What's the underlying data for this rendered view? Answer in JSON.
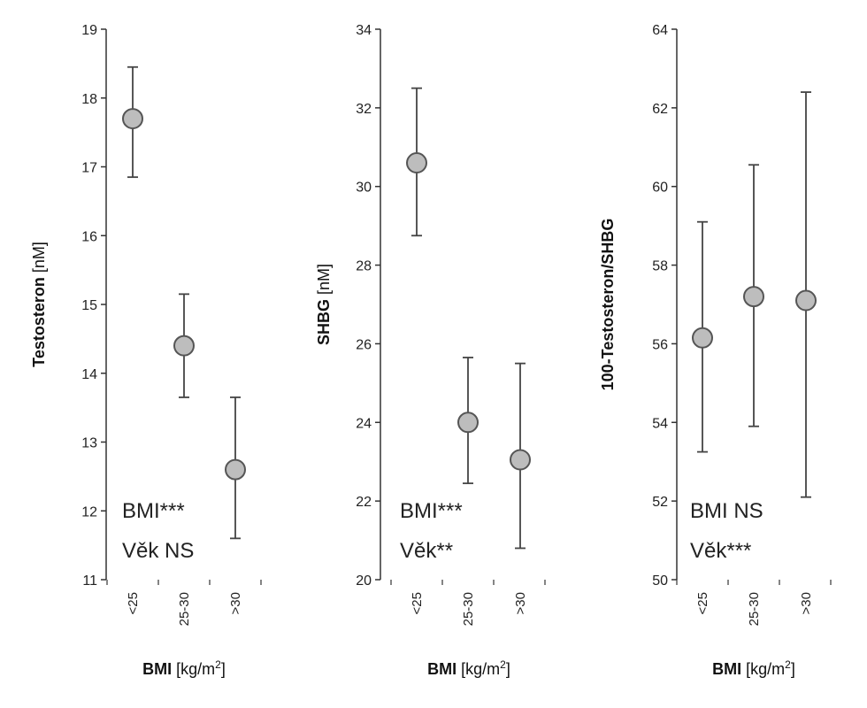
{
  "chart_data": [
    {
      "type": "scatter",
      "ylabel": {
        "bold": "Testosteron",
        "unit": " [nM]"
      },
      "xlabel": {
        "bold": "BMI",
        "unit": " [kg/m",
        "sup": "2",
        "close": "]"
      },
      "ylim": [
        11,
        19
      ],
      "yticks": [
        "11",
        "12",
        "13",
        "14",
        "15",
        "16",
        "17",
        "18",
        "19"
      ],
      "categories": [
        "<25",
        "25-30",
        ">30"
      ],
      "values": [
        17.7,
        14.4,
        12.6
      ],
      "error_low": [
        16.85,
        13.65,
        11.6
      ],
      "error_high": [
        18.45,
        15.15,
        13.65
      ],
      "annotations": [
        {
          "label": "BMI",
          "sig": "***"
        },
        {
          "label": "Věk",
          "sig": " NS"
        }
      ]
    },
    {
      "type": "scatter",
      "ylabel": {
        "bold": "SHBG",
        "unit": " [nM]"
      },
      "xlabel": {
        "bold": "BMI",
        "unit": " [kg/m",
        "sup": "2",
        "close": "]"
      },
      "ylim": [
        20,
        34
      ],
      "yticks": [
        "20",
        "22",
        "24",
        "26",
        "28",
        "30",
        "32",
        "34"
      ],
      "categories": [
        "<25",
        "25-30",
        ">30"
      ],
      "values": [
        30.6,
        24.0,
        23.05
      ],
      "error_low": [
        28.75,
        22.45,
        20.8
      ],
      "error_high": [
        32.5,
        25.65,
        25.5
      ],
      "annotations": [
        {
          "label": "BMI",
          "sig": "***"
        },
        {
          "label": "Věk",
          "sig": "**"
        }
      ]
    },
    {
      "type": "scatter",
      "ylabel": {
        "bold": "100-Testosteron/SHBG",
        "unit": ""
      },
      "xlabel": {
        "bold": "BMI",
        "unit": " [kg/m",
        "sup": "2",
        "close": "]"
      },
      "ylim": [
        50,
        64
      ],
      "yticks": [
        "50",
        "52",
        "54",
        "56",
        "58",
        "60",
        "62",
        "64"
      ],
      "categories": [
        "<25",
        "25-30",
        ">30"
      ],
      "values": [
        56.15,
        57.2,
        57.1
      ],
      "error_low": [
        53.25,
        53.9,
        52.1
      ],
      "error_high": [
        59.1,
        60.55,
        62.4
      ],
      "annotations": [
        {
          "label": "BMI",
          "sig": " NS"
        },
        {
          "label": "Věk",
          "sig": "***"
        }
      ]
    }
  ],
  "colors": {
    "marker_fill": "#bdbdbd",
    "marker_stroke": "#555555",
    "axis": "#333333",
    "errorbar": "#444444"
  }
}
